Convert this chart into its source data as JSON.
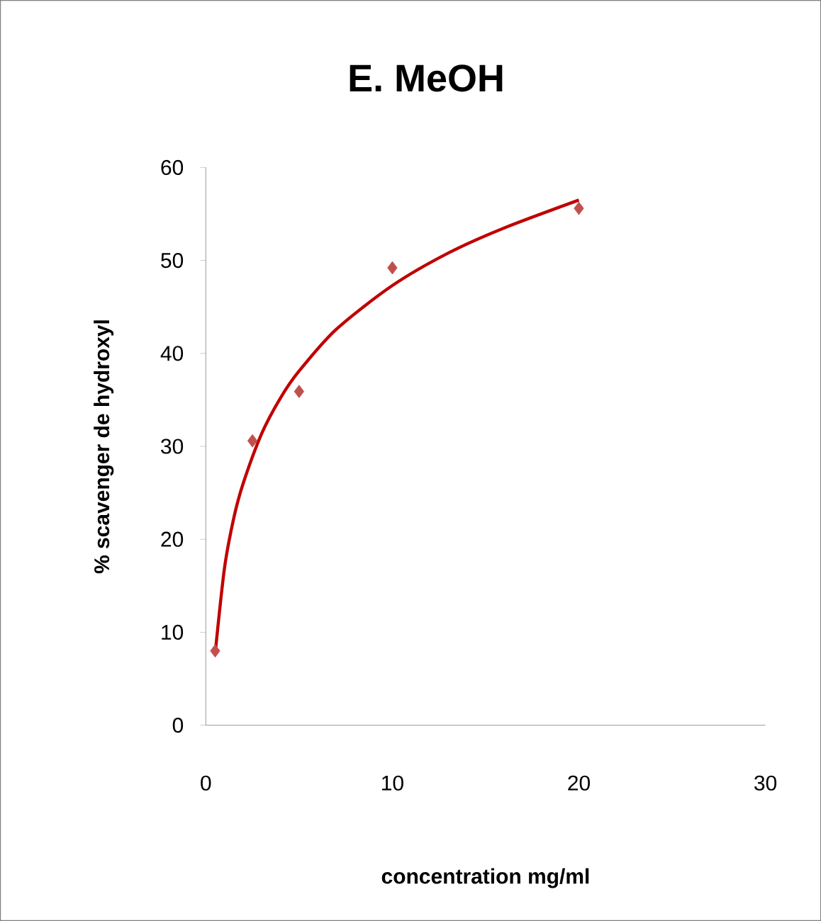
{
  "chart_data": {
    "type": "scatter",
    "title": "E. MeOH",
    "xlabel": "concentration mg/ml",
    "ylabel": "% scavenger de hydroxyl",
    "xlim": [
      0,
      30
    ],
    "xticks": [
      0,
      10,
      20,
      30
    ],
    "ylim": [
      0,
      60
    ],
    "yticks": [
      0,
      10,
      20,
      30,
      40,
      50,
      60
    ],
    "grid": false,
    "marker": "diamond",
    "series": [
      {
        "type": "scatter",
        "color": "#c0504d",
        "x": [
          0.5,
          2.5,
          5,
          10,
          20
        ],
        "values": [
          8,
          30.6,
          35.9,
          49.2,
          55.6
        ]
      },
      {
        "type": "line",
        "marker": "none",
        "color": "#c00000",
        "x": [
          0.5,
          1,
          1.5,
          2,
          3,
          4,
          5,
          7,
          10,
          13,
          16,
          20
        ],
        "values": [
          7.7,
          16.9,
          22.3,
          26,
          31.4,
          35.2,
          38.1,
          42.6,
          47.3,
          50.8,
          53.5,
          56.5
        ]
      }
    ]
  }
}
